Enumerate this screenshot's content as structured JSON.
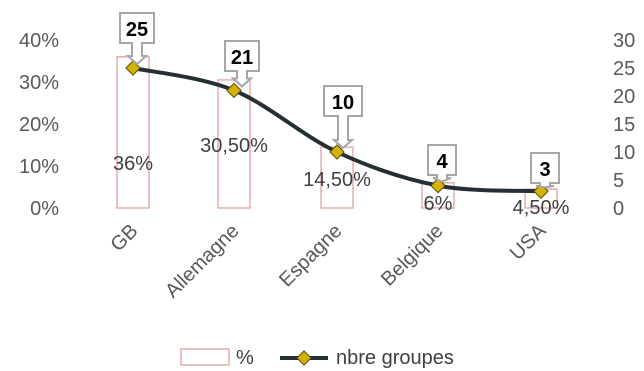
{
  "chart_data": {
    "type": "bar",
    "categories": [
      "GB",
      "Allemagne",
      "Espagne",
      "Belgique",
      "USA"
    ],
    "series": [
      {
        "name": "%",
        "type": "bar",
        "axis": "left",
        "values": [
          36,
          30.5,
          14.5,
          6,
          4.5
        ],
        "labels": [
          "36%",
          "30,50%",
          "14,50%",
          "6%",
          "4,50%"
        ]
      },
      {
        "name": "nbre groupes",
        "type": "line",
        "axis": "right",
        "values": [
          25,
          21,
          10,
          4,
          3
        ],
        "labels": [
          "25",
          "21",
          "10",
          "4",
          "3"
        ]
      }
    ],
    "y_left": {
      "ticks": [
        "0%",
        "10%",
        "20%",
        "30%",
        "40%"
      ],
      "tick_values": [
        0,
        10,
        20,
        30,
        40
      ],
      "ylim": [
        0,
        40
      ]
    },
    "y_right": {
      "ticks": [
        "0",
        "5",
        "10",
        "15",
        "20",
        "25",
        "30"
      ],
      "tick_values": [
        0,
        5,
        10,
        15,
        20,
        25,
        30
      ],
      "ylim": [
        0,
        30
      ]
    },
    "legend": [
      "%",
      "nbre groupes"
    ],
    "legend_position": "bottom",
    "grid": false,
    "colors": {
      "bar_border": "#e3aeaa",
      "line": "#243033",
      "marker": "#d4b20a",
      "callout_border": "#a6a6a6"
    }
  }
}
